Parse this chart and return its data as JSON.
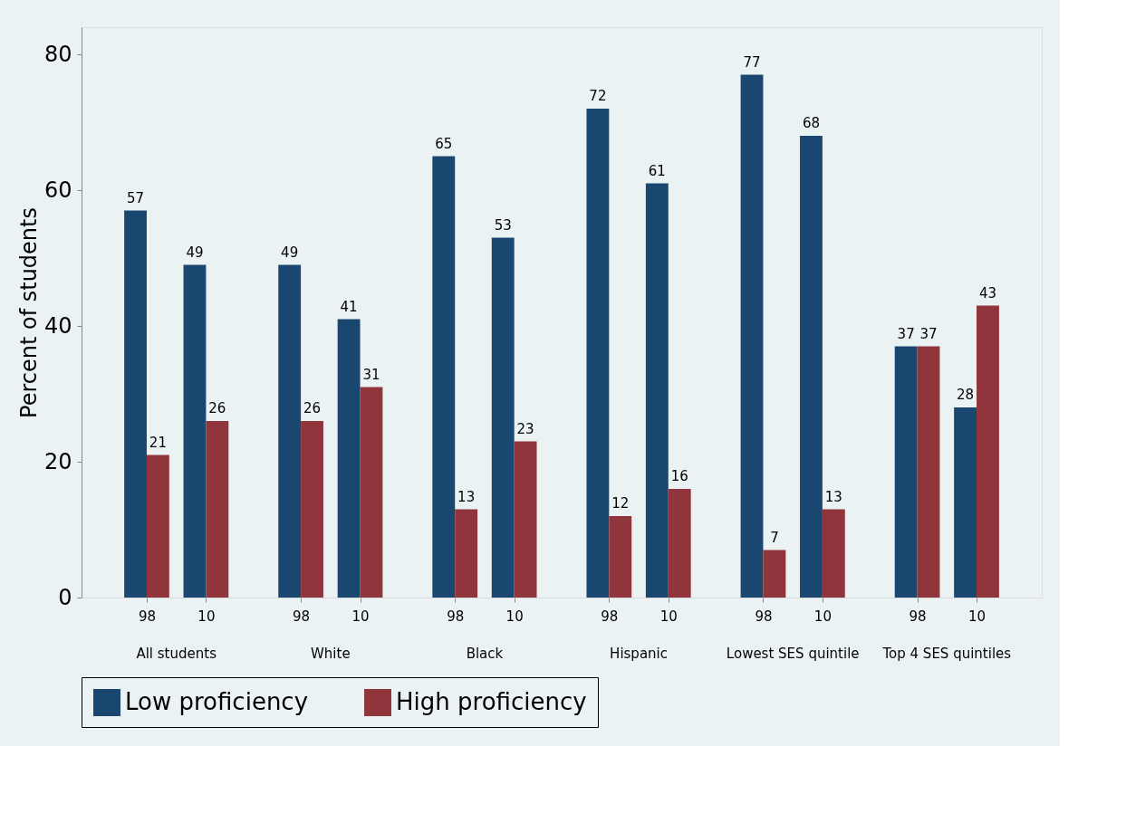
{
  "chart_data": {
    "type": "bar",
    "ylabel": "Percent of students",
    "categories": [
      "98",
      "10",
      "98",
      "10",
      "98",
      "10",
      "98",
      "10",
      "98",
      "10",
      "98",
      "10"
    ],
    "annotations": [
      "All students",
      "White",
      "Black",
      "Hispanic",
      "Lowest SES quintile",
      "Top 4 SES quintiles"
    ],
    "series": [
      {
        "name": "Low proficiency",
        "color": "#1a476f",
        "values": [
          57,
          49,
          49,
          41,
          65,
          53,
          72,
          61,
          77,
          68,
          37,
          28
        ]
      },
      {
        "name": "High proficiency",
        "color": "#90353b",
        "values": [
          21,
          26,
          26,
          31,
          13,
          23,
          12,
          16,
          7,
          13,
          37,
          43
        ]
      }
    ],
    "ylim": [
      0,
      84
    ],
    "yticks": [
      0,
      20,
      40,
      60,
      80
    ],
    "grid": false,
    "legend": "bottom",
    "data_labels": true
  }
}
